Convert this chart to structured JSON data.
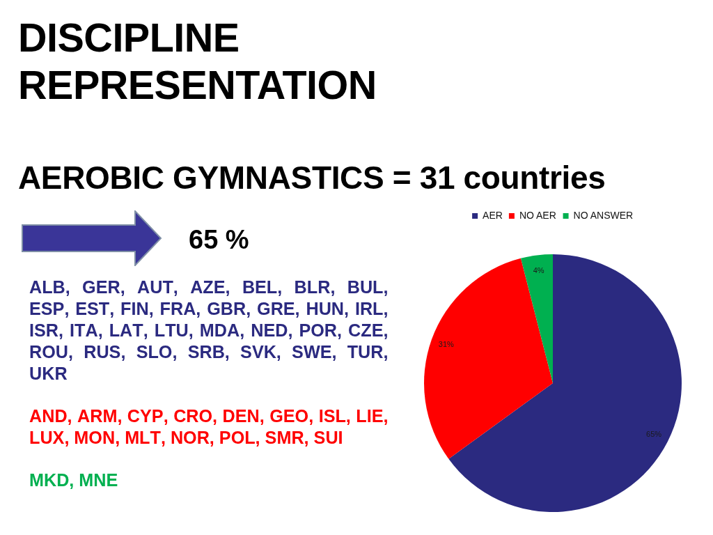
{
  "chart_data": {
    "type": "pie",
    "title": "DISCIPLINE REPRESENTATION",
    "subtitle": "AEROBIC GYMNASTICS = 31 countries",
    "categories": [
      "AER",
      "NO AER",
      "NO ANSWER"
    ],
    "values": [
      65,
      31,
      4
    ],
    "value_labels": [
      "65%",
      "31%",
      "4%"
    ],
    "colors": [
      "#2b2a80",
      "#ff0000",
      "#00b050"
    ],
    "legend": "top",
    "annotations": [
      "65 %",
      "ALB, GER, AUT, AZE, BEL, BLR, BUL, ESP, EST, FIN, FRA, GBR, GRE, HUN, IRL, ISR, ITA, LAT, LTU, MDA, NED, POR, CZE, ROU, RUS, SLO, SRB, SVK, SWE, TUR, UKR",
      "AND, ARM, CYP, CRO, DEN, GEO, ISL, LIE, LUX, MON, MLT, NOR, POL, SMR, SUI",
      "MKD, MNE"
    ]
  }
}
